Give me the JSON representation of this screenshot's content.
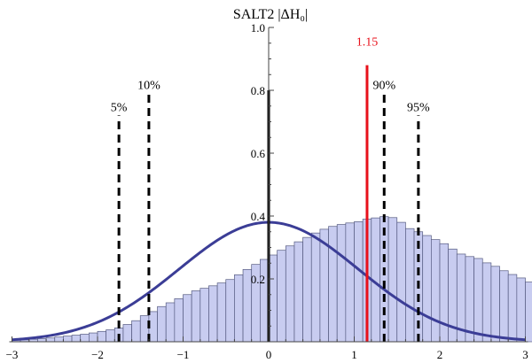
{
  "chart_data": {
    "type": "bar",
    "title": "SALT2  |ΔH₀|",
    "xlabel": "",
    "ylabel": "",
    "xlim": [
      -3,
      3
    ],
    "ylim": [
      0,
      1.0
    ],
    "x_ticks": [
      -3,
      -2,
      -1,
      0,
      1,
      2,
      3
    ],
    "x_tick_labels": [
      "−3",
      "−2",
      "−1",
      "0",
      "1",
      "2",
      "3"
    ],
    "y_ticks": [
      0.2,
      0.4,
      0.6,
      0.8,
      1.0
    ],
    "y_tick_labels": [
      "0.2",
      "0.4",
      "0.6",
      "0.8",
      "1.0"
    ],
    "grid": false,
    "histogram": {
      "bin_width": 0.1,
      "bin_start": -3.0,
      "values": [
        0.005,
        0.006,
        0.008,
        0.01,
        0.012,
        0.015,
        0.018,
        0.021,
        0.024,
        0.028,
        0.033,
        0.038,
        0.044,
        0.055,
        0.067,
        0.083,
        0.096,
        0.112,
        0.124,
        0.137,
        0.15,
        0.162,
        0.17,
        0.178,
        0.187,
        0.198,
        0.213,
        0.23,
        0.246,
        0.262,
        0.276,
        0.291,
        0.305,
        0.318,
        0.332,
        0.346,
        0.358,
        0.367,
        0.373,
        0.378,
        0.382,
        0.39,
        0.394,
        0.398,
        0.395,
        0.38,
        0.36,
        0.35,
        0.338,
        0.325,
        0.312,
        0.295,
        0.279,
        0.271,
        0.265,
        0.251,
        0.24,
        0.226,
        0.214,
        0.203,
        0.19,
        0.176,
        0.162,
        0.15,
        0.138,
        0.126,
        0.114,
        0.104,
        0.094,
        0.084,
        0.074,
        0.064,
        0.056,
        0.049,
        0.041,
        0.035,
        0.03,
        0.025,
        0.02,
        0.016,
        0.013,
        0.01,
        0.008,
        0.006,
        0.005,
        0.004,
        0.003,
        0.003,
        0.002,
        0.002
      ],
      "fill": "#c8ccf0",
      "stroke": "#555a80"
    },
    "curve": {
      "type": "gaussian",
      "mean": 0,
      "sigma": 1.05,
      "peak": 0.38,
      "color": "#3b3d96"
    },
    "vertical_lines": [
      {
        "x": -1.75,
        "top": 0.72,
        "label": "5%",
        "style": "dashed",
        "color": "#000000"
      },
      {
        "x": -1.4,
        "top": 0.79,
        "label": "10%",
        "style": "dashed",
        "color": "#000000"
      },
      {
        "x": 1.35,
        "top": 0.79,
        "label": "90%",
        "style": "dashed",
        "color": "#000000"
      },
      {
        "x": 1.75,
        "top": 0.72,
        "label": "95%",
        "style": "dashed",
        "color": "#000000"
      },
      {
        "x": 0,
        "top": 0.8,
        "label": "",
        "style": "solid",
        "color": "#000000"
      },
      {
        "x": 1.15,
        "top": 0.88,
        "label": "1.15",
        "style": "solid",
        "color": "#e8101a"
      }
    ]
  }
}
